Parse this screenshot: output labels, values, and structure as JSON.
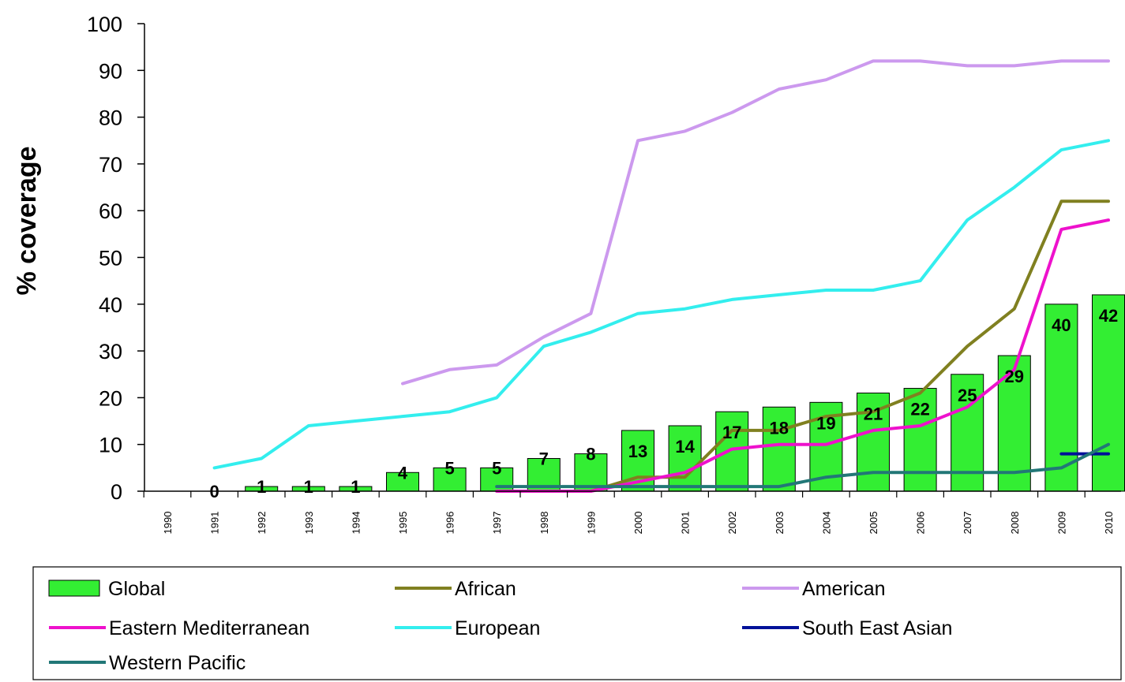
{
  "chart_data": {
    "type": "bar",
    "ylabel": "% coverage",
    "xlabel": "",
    "ylim": [
      0,
      100
    ],
    "yticks": [
      0,
      10,
      20,
      30,
      40,
      50,
      60,
      70,
      80,
      90,
      100
    ],
    "categories": [
      "1990",
      "1991",
      "1992",
      "1993",
      "1994",
      "1995",
      "1996",
      "1997",
      "1998",
      "1999",
      "2000",
      "2001",
      "2002",
      "2003",
      "2004",
      "2005",
      "2006",
      "2007",
      "2008",
      "2009",
      "2010"
    ],
    "bar_series": {
      "name": "Global",
      "color": "#33ee33",
      "values": [
        null,
        0,
        1,
        1,
        1,
        4,
        5,
        5,
        7,
        8,
        13,
        14,
        17,
        18,
        19,
        21,
        22,
        25,
        29,
        40,
        42
      ],
      "labels": [
        "",
        "0",
        "1",
        "1",
        "1",
        "4",
        "5",
        "5",
        "7",
        "8",
        "13",
        "14",
        "17",
        "18",
        "19",
        "21",
        "22",
        "25",
        "29",
        "40",
        "42"
      ]
    },
    "line_series": [
      {
        "name": "African",
        "color": "#808020",
        "values": [
          null,
          null,
          null,
          null,
          null,
          null,
          null,
          null,
          null,
          0,
          3,
          3,
          13,
          13,
          16,
          17,
          21,
          31,
          39,
          62,
          62
        ]
      },
      {
        "name": "American",
        "color": "#cc99ee",
        "values": [
          null,
          null,
          null,
          null,
          null,
          23,
          26,
          27,
          33,
          38,
          75,
          77,
          81,
          86,
          88,
          92,
          92,
          91,
          91,
          92,
          92
        ]
      },
      {
        "name": "Eastern Mediterranean",
        "color": "#ee11cc",
        "values": [
          null,
          null,
          null,
          null,
          null,
          null,
          null,
          0,
          0,
          0,
          2,
          4,
          9,
          10,
          10,
          13,
          14,
          18,
          26,
          56,
          58
        ]
      },
      {
        "name": "European",
        "color": "#33eeee",
        "values": [
          null,
          5,
          7,
          14,
          15,
          16,
          17,
          20,
          31,
          34,
          38,
          39,
          41,
          42,
          43,
          43,
          45,
          58,
          65,
          73,
          75
        ]
      },
      {
        "name": "South East Asian",
        "color": "#001199",
        "values": [
          null,
          null,
          null,
          null,
          null,
          null,
          null,
          null,
          null,
          null,
          null,
          null,
          null,
          null,
          null,
          null,
          null,
          null,
          null,
          8,
          8
        ]
      },
      {
        "name": "Western Pacific",
        "color": "#227777",
        "values": [
          null,
          null,
          null,
          null,
          null,
          null,
          null,
          1,
          1,
          1,
          1,
          1,
          1,
          1,
          3,
          4,
          4,
          4,
          4,
          5,
          10
        ]
      }
    ],
    "legend_position": "bottom",
    "grid": false
  }
}
